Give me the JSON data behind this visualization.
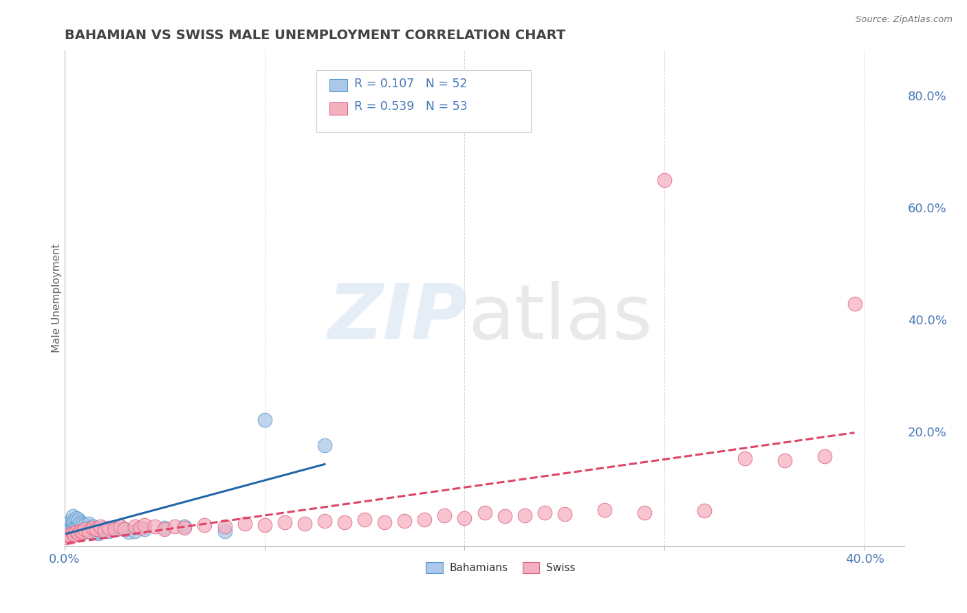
{
  "title": "BAHAMIAN VS SWISS MALE UNEMPLOYMENT CORRELATION CHART",
  "source_text": "Source: ZipAtlas.com",
  "ylabel": "Male Unemployment",
  "xlim": [
    0.0,
    0.42
  ],
  "ylim": [
    -0.005,
    0.88
  ],
  "yticks_right": [
    0.0,
    0.2,
    0.4,
    0.6,
    0.8
  ],
  "ytick_labels_right": [
    "",
    "20.0%",
    "40.0%",
    "60.0%",
    "80.0%"
  ],
  "xticks": [
    0.0,
    0.1,
    0.2,
    0.3,
    0.4
  ],
  "background_color": "#ffffff",
  "grid_color": "#cccccc",
  "bahamian_color": "#aac8e8",
  "swiss_color": "#f5b0c0",
  "bahamian_edge_color": "#5599cc",
  "swiss_edge_color": "#e06080",
  "bahamian_line_color": "#2266aa",
  "swiss_line_color": "#dd4466",
  "R_bahamian": 0.107,
  "N_bahamian": 52,
  "R_swiss": 0.539,
  "N_swiss": 53,
  "bahamian_label": "Bahamians",
  "swiss_label": "Swiss",
  "bahamian_x": [
    0.001,
    0.001,
    0.002,
    0.002,
    0.002,
    0.003,
    0.003,
    0.003,
    0.004,
    0.004,
    0.004,
    0.004,
    0.005,
    0.005,
    0.005,
    0.006,
    0.006,
    0.006,
    0.007,
    0.007,
    0.007,
    0.008,
    0.008,
    0.008,
    0.009,
    0.009,
    0.01,
    0.01,
    0.011,
    0.012,
    0.012,
    0.013,
    0.014,
    0.015,
    0.016,
    0.017,
    0.018,
    0.019,
    0.02,
    0.022,
    0.024,
    0.026,
    0.028,
    0.03,
    0.032,
    0.035,
    0.04,
    0.05,
    0.06,
    0.08,
    0.1,
    0.13
  ],
  "bahamian_y": [
    0.022,
    0.03,
    0.018,
    0.025,
    0.035,
    0.02,
    0.028,
    0.04,
    0.022,
    0.03,
    0.038,
    0.048,
    0.018,
    0.028,
    0.04,
    0.02,
    0.03,
    0.045,
    0.022,
    0.032,
    0.042,
    0.018,
    0.028,
    0.038,
    0.022,
    0.035,
    0.02,
    0.032,
    0.028,
    0.022,
    0.035,
    0.025,
    0.03,
    0.02,
    0.025,
    0.018,
    0.022,
    0.028,
    0.025,
    0.022,
    0.028,
    0.025,
    0.03,
    0.025,
    0.02,
    0.022,
    0.025,
    0.028,
    0.03,
    0.022,
    0.22,
    0.175
  ],
  "swiss_x": [
    0.001,
    0.002,
    0.003,
    0.004,
    0.005,
    0.006,
    0.007,
    0.008,
    0.009,
    0.01,
    0.012,
    0.014,
    0.016,
    0.018,
    0.02,
    0.022,
    0.025,
    0.028,
    0.03,
    0.035,
    0.038,
    0.04,
    0.045,
    0.05,
    0.055,
    0.06,
    0.07,
    0.08,
    0.09,
    0.1,
    0.11,
    0.12,
    0.13,
    0.14,
    0.15,
    0.16,
    0.17,
    0.18,
    0.19,
    0.2,
    0.21,
    0.22,
    0.23,
    0.24,
    0.25,
    0.27,
    0.29,
    0.3,
    0.32,
    0.34,
    0.36,
    0.38,
    0.395
  ],
  "swiss_y": [
    0.01,
    0.015,
    0.012,
    0.018,
    0.015,
    0.02,
    0.018,
    0.022,
    0.02,
    0.025,
    0.022,
    0.028,
    0.025,
    0.03,
    0.022,
    0.028,
    0.025,
    0.03,
    0.025,
    0.03,
    0.028,
    0.032,
    0.03,
    0.025,
    0.03,
    0.028,
    0.032,
    0.03,
    0.035,
    0.032,
    0.038,
    0.035,
    0.04,
    0.038,
    0.042,
    0.038,
    0.04,
    0.042,
    0.05,
    0.045,
    0.055,
    0.048,
    0.05,
    0.055,
    0.052,
    0.06,
    0.055,
    0.648,
    0.058,
    0.152,
    0.148,
    0.155,
    0.428
  ]
}
